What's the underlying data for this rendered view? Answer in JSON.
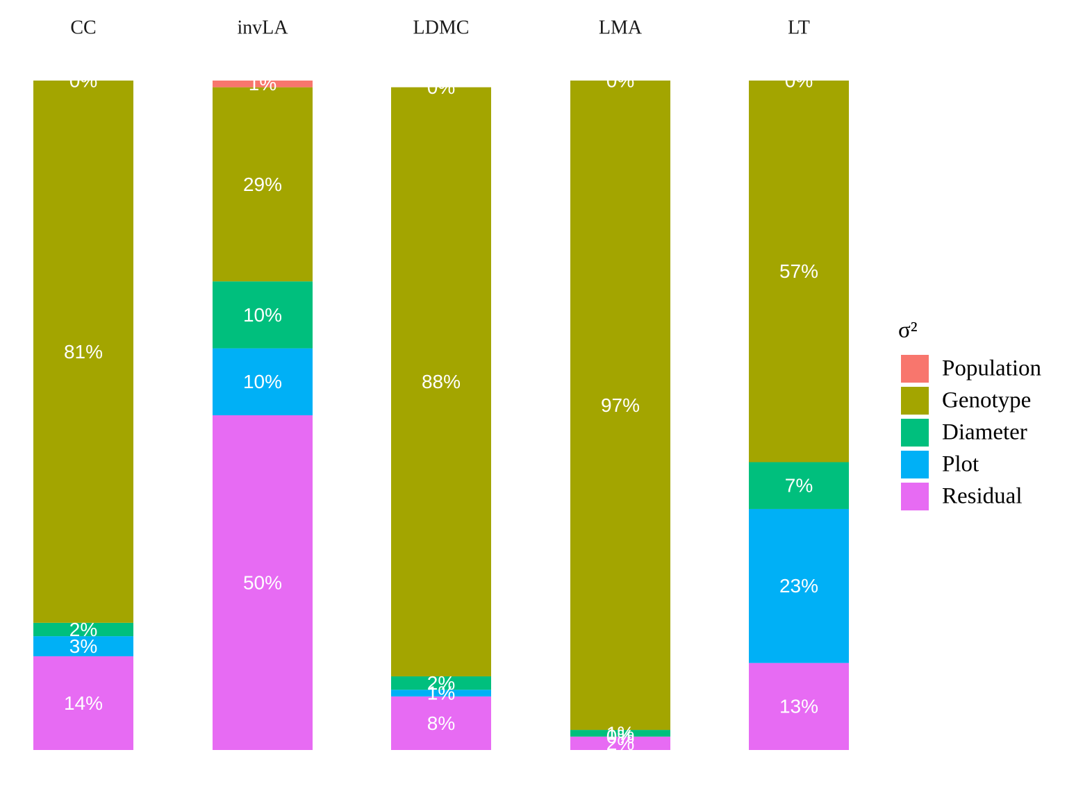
{
  "chart_data": {
    "type": "stacked_bar",
    "legend_title": "σ²",
    "categories": [
      "CC",
      "invLA",
      "LDMC",
      "LMA",
      "LT"
    ],
    "ylim": [
      0,
      100
    ],
    "legend_position": "right",
    "series": [
      {
        "name": "Population",
        "color": "#F8766D",
        "values": [
          0,
          1,
          0,
          0,
          0
        ],
        "value_labels": [
          "0%",
          "1%",
          "0%",
          "0%",
          "0%"
        ]
      },
      {
        "name": "Genotype",
        "color": "#A3A500",
        "values": [
          81,
          29,
          88,
          97,
          57
        ],
        "value_labels": [
          "81%",
          "29%",
          "88%",
          "97%",
          "57%"
        ]
      },
      {
        "name": "Diameter",
        "color": "#00BF7D",
        "values": [
          2,
          10,
          2,
          1,
          7
        ],
        "value_labels": [
          "2%",
          "10%",
          "2%",
          "1%",
          "7%"
        ]
      },
      {
        "name": "Plot",
        "color": "#00B0F6",
        "values": [
          3,
          10,
          1,
          0,
          23
        ],
        "value_labels": [
          "3%",
          "10%",
          "1%",
          "0%",
          "23%"
        ]
      },
      {
        "name": "Residual",
        "color": "#E76BF3",
        "values": [
          14,
          50,
          8,
          2,
          13
        ],
        "value_labels": [
          "14%",
          "50%",
          "8%",
          "2%",
          "13%"
        ]
      }
    ]
  }
}
